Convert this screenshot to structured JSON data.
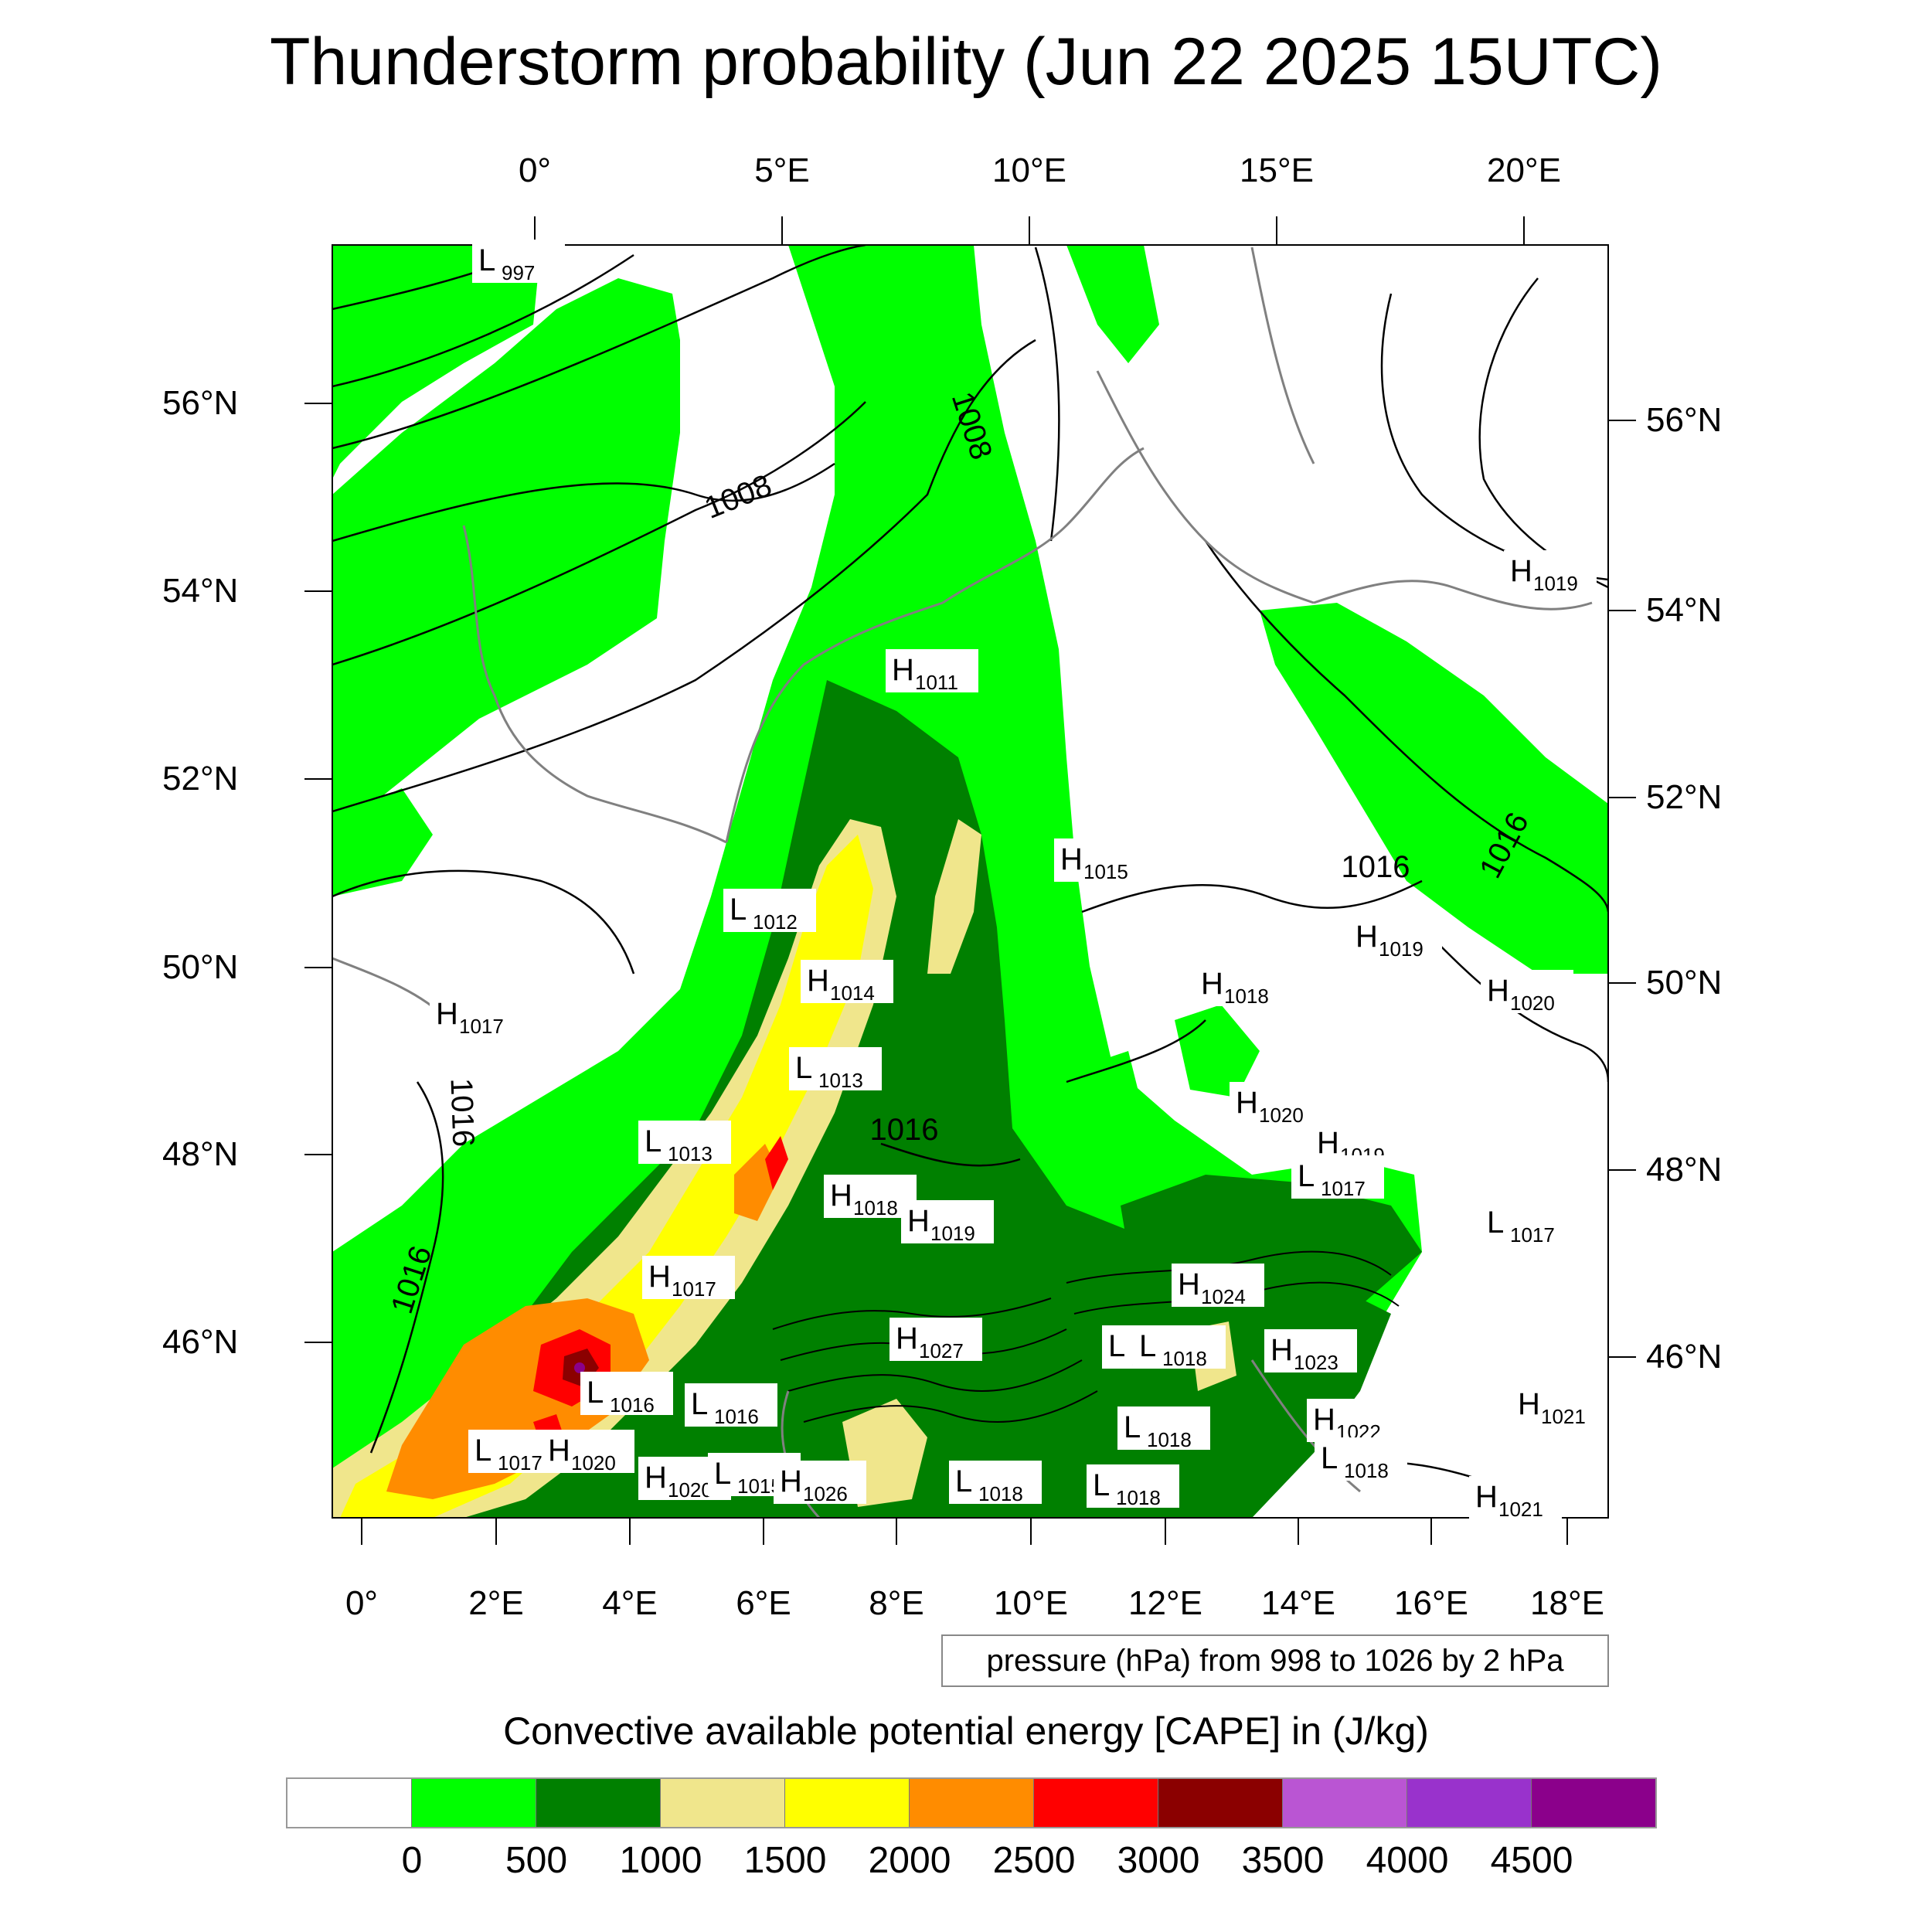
{
  "title": "Thunderstorm probability (Jun 22 2025 15UTC)",
  "top_lon_labels": [
    "0°",
    "5°E",
    "10°E",
    "15°E",
    "20°E"
  ],
  "bottom_lon_labels": [
    "0°",
    "2°E",
    "4°E",
    "6°E",
    "8°E",
    "10°E",
    "12°E",
    "14°E",
    "16°E",
    "18°E"
  ],
  "left_lat_labels": [
    "56°N",
    "54°N",
    "52°N",
    "50°N",
    "48°N",
    "46°N"
  ],
  "right_lat_labels": [
    "56°N",
    "54°N",
    "52°N",
    "50°N",
    "48°N",
    "46°N"
  ],
  "contour_info": "pressure (hPa) from 998 to 1026 by 2 hPa",
  "colorbar": {
    "title": "Convective available potential energy [CAPE] in (J/kg)",
    "colors": [
      "#ffffff",
      "#00ff00",
      "#008000",
      "#f0e68c",
      "#ffff00",
      "#ff8c00",
      "#ff0000",
      "#8b0000",
      "#ba55d3",
      "#9932cc",
      "#8b008b"
    ],
    "labels": [
      "0",
      "500",
      "1000",
      "1500",
      "2000",
      "2500",
      "3000",
      "3500",
      "4000",
      "4500"
    ]
  },
  "pressure_centers": [
    {
      "type": "L",
      "value": "997"
    },
    {
      "type": "H",
      "value": "1011"
    },
    {
      "type": "H",
      "value": "1019"
    },
    {
      "type": "H",
      "value": "1015"
    },
    {
      "type": "L",
      "value": "1012"
    },
    {
      "type": "H",
      "value": "1014"
    },
    {
      "type": "H",
      "value": "1017"
    },
    {
      "type": "L",
      "value": "1013"
    },
    {
      "type": "L",
      "value": "1013"
    },
    {
      "type": "H",
      "value": "1018"
    },
    {
      "type": "H",
      "value": "1019"
    },
    {
      "type": "H",
      "value": "1018"
    },
    {
      "type": "H",
      "value": "1019"
    },
    {
      "type": "H",
      "value": "1020"
    },
    {
      "type": "H",
      "value": "1020"
    },
    {
      "type": "H",
      "value": "1019"
    },
    {
      "type": "L",
      "value": "1017"
    },
    {
      "type": "L",
      "value": "1017"
    },
    {
      "type": "H",
      "value": "1017"
    },
    {
      "type": "H",
      "value": "1024"
    },
    {
      "type": "H",
      "value": "1027"
    },
    {
      "type": "L",
      "value": "1018"
    },
    {
      "type": "L",
      "value": "1018"
    },
    {
      "type": "H",
      "value": "1023"
    },
    {
      "type": "L",
      "value": "1016"
    },
    {
      "type": "L",
      "value": "1016"
    },
    {
      "type": "L",
      "value": "1017"
    },
    {
      "type": "H",
      "value": "1020"
    },
    {
      "type": "H",
      "value": "1020"
    },
    {
      "type": "L",
      "value": "1015"
    },
    {
      "type": "H",
      "value": "1026"
    },
    {
      "type": "L",
      "value": "1018"
    },
    {
      "type": "L",
      "value": "1018"
    },
    {
      "type": "L",
      "value": "1018"
    },
    {
      "type": "H",
      "value": "1022"
    },
    {
      "type": "L",
      "value": "1018"
    },
    {
      "type": "H",
      "value": "1021"
    },
    {
      "type": "H",
      "value": "1021"
    }
  ],
  "isobar_labels": [
    "1008",
    "1008",
    "1016",
    "1016",
    "1016",
    "1016",
    "1016"
  ]
}
